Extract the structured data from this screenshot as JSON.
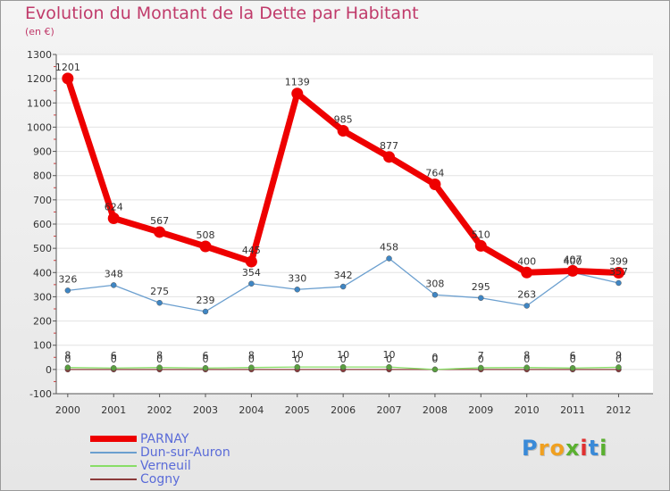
{
  "title": "Evolution du Montant de la Dette par Habitant",
  "subtitle": "(en €)",
  "logo": {
    "text": "Proxiti",
    "letters": [
      "P",
      "r",
      "o",
      "x",
      "i",
      "t",
      "i"
    ],
    "colors": [
      "#3a8ad8",
      "#f0a020",
      "#f0a020",
      "#5ab030",
      "#e03030",
      "#3a8ad8",
      "#5ab030"
    ]
  },
  "chart_data": {
    "type": "line",
    "categories": [
      "2000",
      "2001",
      "2002",
      "2003",
      "2004",
      "2005",
      "2006",
      "2007",
      "2008",
      "2009",
      "2010",
      "2011",
      "2012"
    ],
    "ylim": [
      -100,
      1300
    ],
    "yticks": [
      "-100",
      "0",
      "100",
      "200",
      "300",
      "400",
      "500",
      "600",
      "700",
      "800",
      "900",
      "1000",
      "1100",
      "1200",
      "1300"
    ],
    "series": [
      {
        "name": "PARNAY",
        "color": "#ee0000",
        "width": "bold",
        "values": [
          1201,
          624,
          567,
          508,
          445,
          1139,
          985,
          877,
          764,
          510,
          400,
          407,
          399
        ],
        "labels": [
          "1201",
          "624",
          "567",
          "508",
          "445",
          "1139",
          "985",
          "877",
          "764",
          "510",
          "400",
          "407",
          "399"
        ]
      },
      {
        "name": "Dun-sur-Auron",
        "color": "#6b9fcf",
        "width": "thin",
        "values": [
          326,
          348,
          275,
          239,
          354,
          330,
          342,
          458,
          308,
          295,
          263,
          400,
          357
        ],
        "labels": [
          "326",
          "348",
          "275",
          "239",
          "354",
          "330",
          "342",
          "458",
          "308",
          "295",
          "263",
          "400",
          "357"
        ]
      },
      {
        "name": "Verneuil",
        "color": "#88dd66",
        "width": "thin",
        "values": [
          8,
          6,
          8,
          6,
          8,
          10,
          10,
          10,
          0,
          7,
          8,
          6,
          9
        ],
        "labels": [
          "8",
          "6",
          "8",
          "6",
          "8",
          "10",
          "10",
          "10",
          "0",
          "7",
          "8",
          "6",
          "9"
        ]
      },
      {
        "name": "Cogny",
        "color": "#8b3a3a",
        "width": "thin",
        "values": [
          0,
          0,
          0,
          0,
          0,
          0,
          0,
          0,
          0,
          0,
          0,
          0,
          0
        ],
        "labels": [
          "0",
          "0",
          "0",
          "0",
          "0",
          "0",
          "0",
          "0",
          "0",
          "0",
          "0",
          "0",
          "0"
        ]
      }
    ]
  }
}
